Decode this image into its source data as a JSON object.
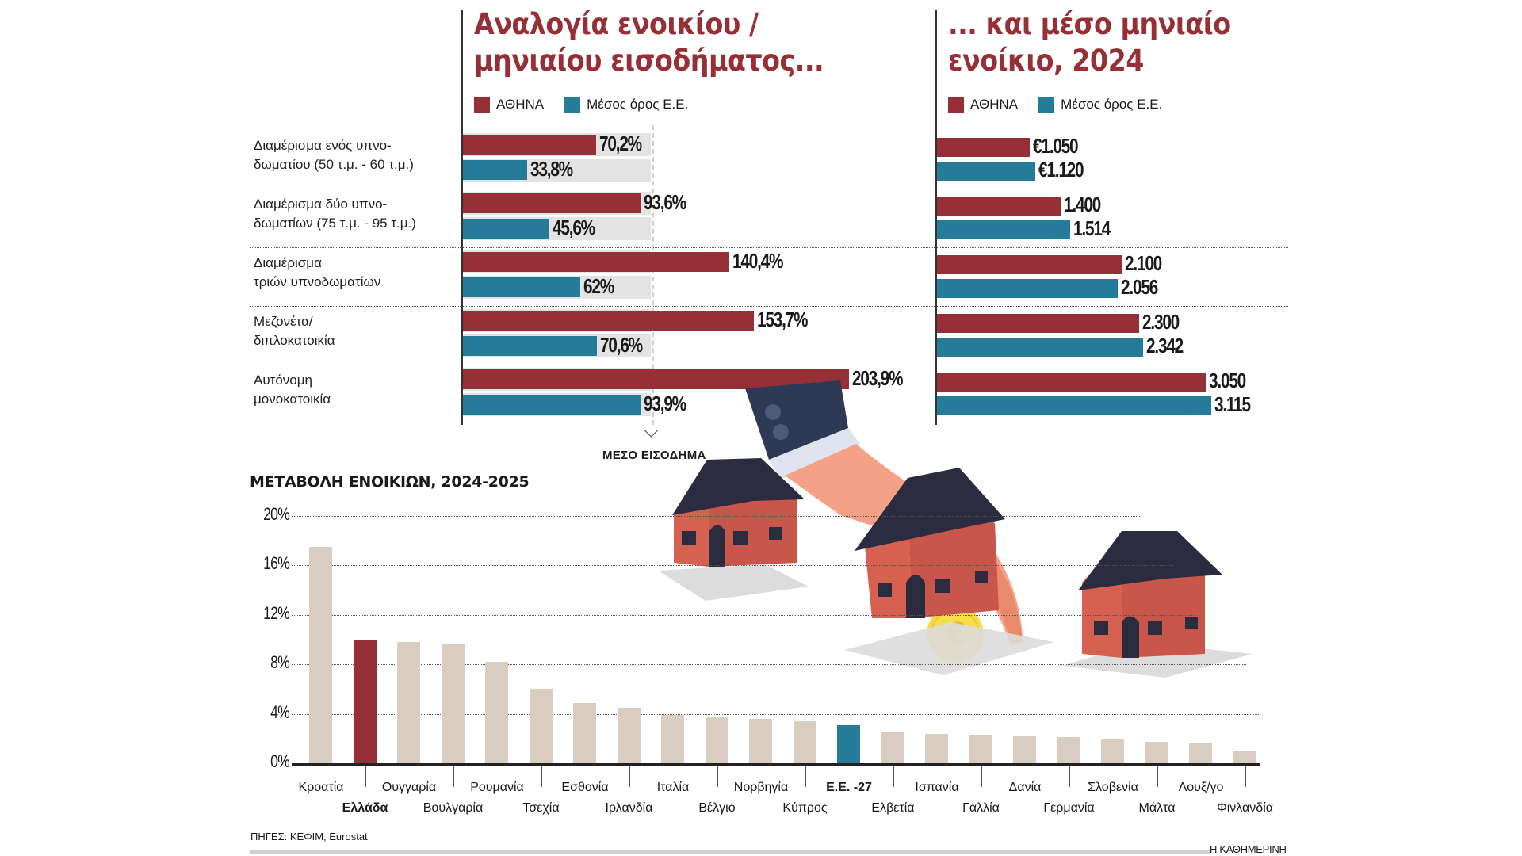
{
  "colors": {
    "athens": "#963036",
    "eu": "#247c99",
    "neutral": "#d9cdc1",
    "track": "#e3e3e3"
  },
  "legend": {
    "athens": "ΑΘΗΝΑ",
    "eu": "Μέσος όρος Ε.Ε."
  },
  "chart_data": [
    {
      "type": "bar",
      "orientation": "horizontal",
      "title": "Αναλογία ενοικίου / μηνιαίου εισοδήματος...",
      "title_lines": [
        "Αναλογία ενοικίου /",
        "μηνιαίου εισοδήματος..."
      ],
      "categories": [
        [
          "Διαμέρισμα ενός υπνο-",
          "δωματίου (50 τ.μ. - 60 τ.μ.)"
        ],
        [
          "Διαμέρισμα δύο υπνο-",
          "δωματίων (75 τ.μ. - 95 τ.μ.)"
        ],
        [
          "Διαμέρισμα",
          "τριών υπνοδωματίων"
        ],
        [
          "Μεζονέτα/",
          "διπλοκατοικία"
        ],
        [
          "Αυτόνομη",
          "μονοκατοικία"
        ]
      ],
      "series": [
        {
          "name": "ΑΘΗΝΑ",
          "values": [
            70.2,
            93.6,
            140.4,
            153.7,
            203.9
          ],
          "labels": [
            "70,2%",
            "93,6%",
            "140,4%",
            "153,7%",
            "203,9%"
          ]
        },
        {
          "name": "Μέσος όρος Ε.Ε.",
          "values": [
            33.8,
            45.6,
            62,
            70.6,
            93.9
          ],
          "labels": [
            "33,8%",
            "45,6%",
            "62%",
            "70,6%",
            "93,9%"
          ]
        }
      ],
      "reference_line": {
        "value": 100,
        "label": "ΜΕΣΟ ΕΙΣΟΔΗΜΑ"
      },
      "xlim": [
        0,
        210
      ]
    },
    {
      "type": "bar",
      "orientation": "horizontal",
      "title": "... και μέσο μηνιαίο ενοίκιο, 2024",
      "title_lines": [
        "... και μέσο μηνιαίο",
        "ενοίκιο, 2024"
      ],
      "series": [
        {
          "name": "ΑΘΗΝΑ",
          "values": [
            1050,
            1400,
            2100,
            2300,
            3050
          ],
          "labels": [
            "€1.050",
            "1.400",
            "2.100",
            "2.300",
            "3.050"
          ]
        },
        {
          "name": "Μέσος όρος Ε.Ε.",
          "values": [
            1120,
            1514,
            2056,
            2342,
            3115
          ],
          "labels": [
            "€1.120",
            "1.514",
            "2.056",
            "2.342",
            "3.115"
          ]
        }
      ],
      "xlim": [
        0,
        3300
      ]
    },
    {
      "type": "bar",
      "orientation": "vertical",
      "title": "ΜΕΤΑΒΟΛΗ ΕΝΟΙΚΙΩΝ, 2024-2025",
      "categories": [
        "Κροατία",
        "Ελλάδα",
        "Ουγγαρία",
        "Βουλγαρία",
        "Ρουμανία",
        "Τσεχία",
        "Εσθονία",
        "Ιρλανδία",
        "Ιταλία",
        "Βέλγιο",
        "Νορβηγία",
        "Κύπρος",
        "Ε.Ε. -27",
        "Ελβετία",
        "Ισπανία",
        "Γαλλία",
        "Δανία",
        "Γερμανία",
        "Σλοβενία",
        "Μάλτα",
        "Λουξ/γο",
        "Φινλανδία"
      ],
      "values": [
        17.5,
        10.0,
        9.8,
        9.6,
        8.2,
        6.0,
        4.9,
        4.5,
        3.9,
        3.7,
        3.6,
        3.4,
        3.1,
        2.5,
        2.4,
        2.3,
        2.2,
        2.1,
        1.9,
        1.7,
        1.6,
        1.0
      ],
      "highlight": {
        "Ελλάδα": "athens",
        "Ε.Ε. -27": "eu"
      },
      "yticks": [
        "0%",
        "4%",
        "8%",
        "12%",
        "16%",
        "20%"
      ],
      "ylim": [
        0,
        20
      ],
      "grid": true
    }
  ],
  "footer": {
    "source": "ΠΗΓΕΣ: ΚΕΦΙΜ, Eurostat",
    "publisher": "Η ΚΑΘΗΜΕΡΙΝΗ"
  }
}
